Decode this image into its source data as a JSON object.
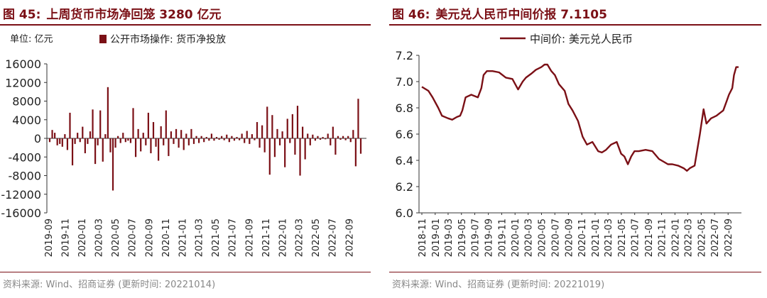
{
  "colors": {
    "accent": "#7b1016",
    "bar": "#7b1016",
    "line": "#7b1016",
    "source_text": "#888888"
  },
  "left": {
    "figure_label": "图 45:",
    "title": "上周货币市场净回笼 3280 亿元",
    "unit": "单位: 亿元",
    "source": "资料来源: Wind、招商证券 (更新时间: 20221014)"
  },
  "right": {
    "figure_label": "图 46:",
    "title": "美元兑人民币中间价报 7.1105",
    "source": "资料来源: Wind、招商证券 (更新时间: 20221019)"
  },
  "chart_data": [
    {
      "type": "bar",
      "unit": "亿元",
      "legend": [
        "公开市场操作: 货币净投放"
      ],
      "legend_position": "top",
      "ylim": [
        -16000,
        16000
      ],
      "yticks": [
        16000,
        12000,
        8000,
        4000,
        0,
        -4000,
        -8000,
        -12000,
        -16000
      ],
      "x_tick_labels": [
        "2019-09",
        "2019-11",
        "2020-01",
        "2020-03",
        "2020-05",
        "2020-07",
        "2020-09",
        "2020-11",
        "2021-01",
        "2021-03",
        "2021-05",
        "2021-07",
        "2021-09",
        "2021-11",
        "2022-01",
        "2022-03",
        "2022-05",
        "2022-07",
        "2022-09"
      ],
      "x_start": "2019-09-06",
      "x_end": "2022-10-14",
      "grid": false,
      "series": [
        {
          "name": "公开市场操作: 货币净投放",
          "values": [
            -800,
            1800,
            1200,
            -1500,
            -1200,
            -1800,
            900,
            -2500,
            5500,
            -5800,
            -1200,
            1200,
            -800,
            2500,
            -3200,
            -1200,
            1500,
            6200,
            -5500,
            -1500,
            6000,
            -5000,
            900,
            11000,
            -3000,
            -11200,
            -2000,
            500,
            -1000,
            1200,
            -800,
            -500,
            -1000,
            6500,
            -4000,
            2000,
            -2800,
            1200,
            -1500,
            5500,
            -3200,
            3500,
            -1800,
            -4800,
            2600,
            -1500,
            6000,
            -3800,
            1500,
            -1200,
            2000,
            -2000,
            1800,
            -2500,
            1000,
            -1500,
            2000,
            -1200,
            500,
            -1000,
            500,
            -800,
            300,
            -500,
            1000,
            -500,
            300,
            -300,
            500,
            -400,
            800,
            -800,
            500,
            -500,
            300,
            -400,
            1000,
            -1000,
            1600,
            -1200,
            900,
            -400,
            3500,
            -2000,
            2800,
            -3000,
            6800,
            -7800,
            5000,
            -4000,
            2000,
            -1500,
            1500,
            -6200,
            4200,
            -1000,
            5200,
            -3500,
            7000,
            -8000,
            2500,
            -4500,
            1000,
            -1500,
            800,
            -500,
            500,
            -300,
            300,
            -200,
            1000,
            -1500,
            2500,
            -3500,
            500,
            -300,
            500,
            -400,
            500,
            -800,
            1800,
            -6000,
            8500,
            -3300
          ]
        }
      ]
    },
    {
      "type": "line",
      "legend": [
        "中间价: 美元兑人民币"
      ],
      "legend_position": "top",
      "ylim": [
        6.0,
        7.2
      ],
      "yticks": [
        7.2,
        7.0,
        6.8,
        6.6,
        6.4,
        6.2,
        6.0
      ],
      "x_tick_labels": [
        "2018-11",
        "2019-01",
        "2019-03",
        "2019-05",
        "2019-07",
        "2019-09",
        "2019-11",
        "2020-01",
        "2020-03",
        "2020-05",
        "2020-07",
        "2020-09",
        "2020-11",
        "2021-01",
        "2021-03",
        "2021-05",
        "2021-07",
        "2021-09",
        "2021-11",
        "2022-01",
        "2022-03",
        "2022-05",
        "2022-07",
        "2022-09"
      ],
      "grid": false,
      "series": [
        {
          "name": "中间价: 美元兑人民币",
          "x": [
            "2018-11-01",
            "2018-12-01",
            "2018-12-20",
            "2019-01-15",
            "2019-02-01",
            "2019-03-01",
            "2019-03-20",
            "2019-04-10",
            "2019-04-25",
            "2019-05-05",
            "2019-05-20",
            "2019-06-15",
            "2019-07-15",
            "2019-07-31",
            "2019-08-10",
            "2019-08-25",
            "2019-09-20",
            "2019-10-20",
            "2019-11-20",
            "2019-12-20",
            "2020-01-15",
            "2020-02-05",
            "2020-02-20",
            "2020-03-15",
            "2020-04-05",
            "2020-04-30",
            "2020-05-15",
            "2020-05-28",
            "2020-06-15",
            "2020-07-01",
            "2020-07-20",
            "2020-08-15",
            "2020-09-01",
            "2020-09-20",
            "2020-10-15",
            "2020-11-05",
            "2020-11-25",
            "2020-12-20",
            "2021-01-15",
            "2021-02-01",
            "2021-02-20",
            "2021-03-15",
            "2021-04-10",
            "2021-04-30",
            "2021-05-15",
            "2021-05-31",
            "2021-06-15",
            "2021-06-30",
            "2021-07-20",
            "2021-08-20",
            "2021-09-20",
            "2021-10-20",
            "2021-11-10",
            "2021-11-30",
            "2021-12-20",
            "2022-01-15",
            "2022-02-10",
            "2022-02-25",
            "2022-03-10",
            "2022-04-01",
            "2022-04-15",
            "2022-04-25",
            "2022-05-12",
            "2022-05-25",
            "2022-06-15",
            "2022-07-10",
            "2022-07-25",
            "2022-08-10",
            "2022-08-25",
            "2022-09-05",
            "2022-09-20",
            "2022-09-28",
            "2022-10-08",
            "2022-10-19"
          ],
          "y": [
            6.96,
            6.93,
            6.88,
            6.8,
            6.74,
            6.72,
            6.71,
            6.73,
            6.74,
            6.78,
            6.88,
            6.9,
            6.88,
            6.95,
            7.05,
            7.08,
            7.08,
            7.07,
            7.03,
            7.02,
            6.94,
            7.0,
            7.03,
            7.06,
            7.09,
            7.11,
            7.13,
            7.13,
            7.08,
            7.05,
            6.98,
            6.93,
            6.83,
            6.78,
            6.7,
            6.58,
            6.52,
            6.54,
            6.47,
            6.46,
            6.48,
            6.52,
            6.54,
            6.45,
            6.43,
            6.37,
            6.43,
            6.47,
            6.47,
            6.48,
            6.47,
            6.41,
            6.39,
            6.37,
            6.37,
            6.36,
            6.34,
            6.32,
            6.34,
            6.36,
            6.5,
            6.6,
            6.79,
            6.68,
            6.72,
            6.74,
            6.76,
            6.78,
            6.85,
            6.9,
            6.95,
            7.05,
            7.11,
            7.11
          ]
        }
      ]
    }
  ]
}
